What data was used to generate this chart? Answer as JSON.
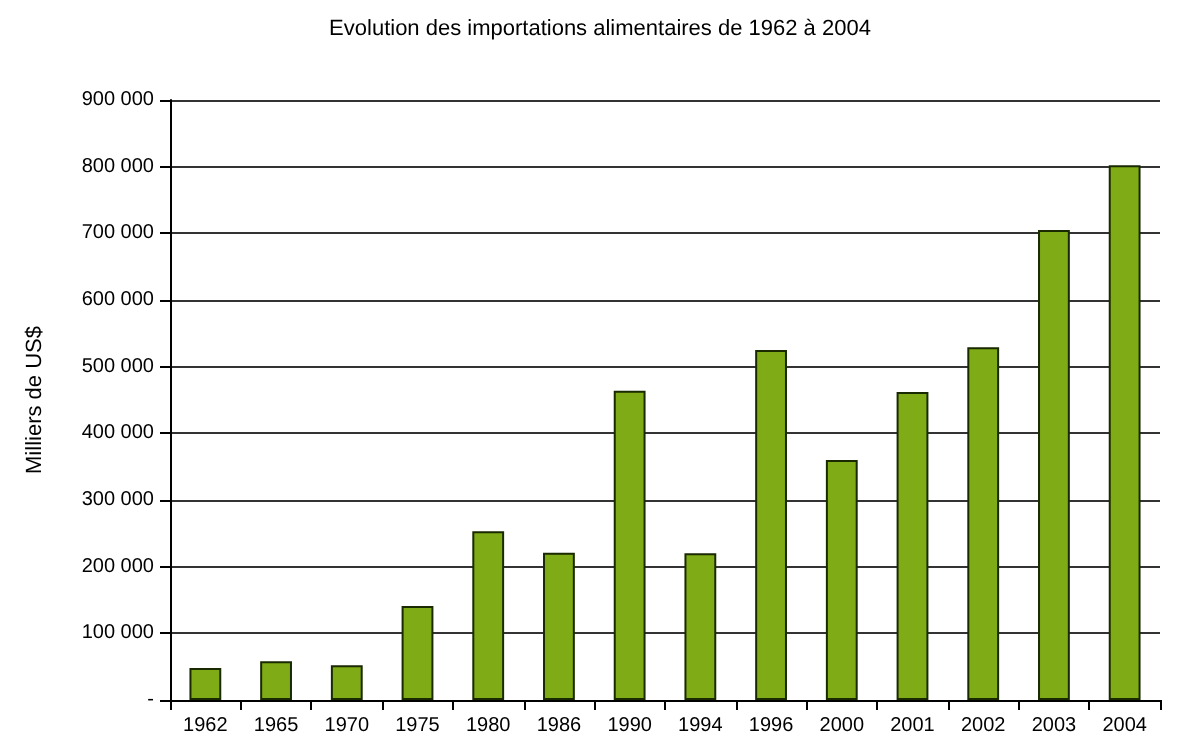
{
  "chart_data": {
    "type": "bar",
    "title": "Evolution des importations alimentaires de 1962 à 2004",
    "ylabel": "Milliers de US$",
    "categories": [
      "1962",
      "1965",
      "1970",
      "1975",
      "1980",
      "1986",
      "1990",
      "1994",
      "1996",
      "2000",
      "2001",
      "2002",
      "2003",
      "2004"
    ],
    "values": [
      48000,
      58000,
      52000,
      141000,
      253000,
      221000,
      464000,
      220000,
      525000,
      360000,
      462000,
      529000,
      705000,
      802000
    ],
    "color": "#7fab16",
    "ylim": [
      0,
      900000
    ],
    "yticks": [
      {
        "value": 0,
        "label": "-"
      },
      {
        "value": 100000,
        "label": "100 000"
      },
      {
        "value": 200000,
        "label": "200 000"
      },
      {
        "value": 300000,
        "label": "300 000"
      },
      {
        "value": 400000,
        "label": "400 000"
      },
      {
        "value": 500000,
        "label": "500 000"
      },
      {
        "value": 600000,
        "label": "600 000"
      },
      {
        "value": 700000,
        "label": "700 000"
      },
      {
        "value": 800000,
        "label": "800 000"
      },
      {
        "value": 900000,
        "label": "900 000"
      }
    ],
    "grid": "y"
  }
}
